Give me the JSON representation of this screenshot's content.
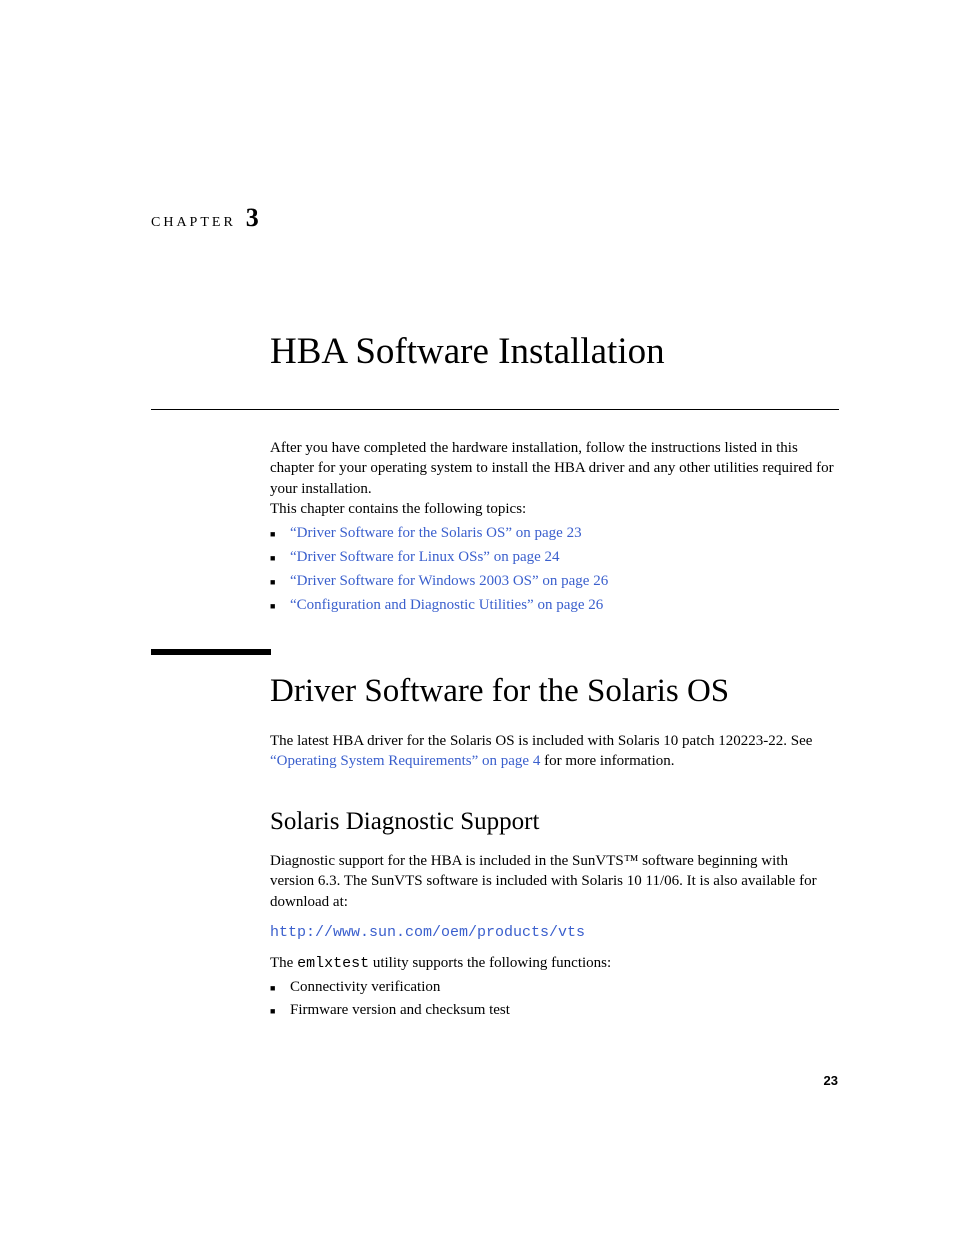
{
  "chapter": {
    "label": "CHAPTER",
    "number": "3"
  },
  "title": "HBA Software Installation",
  "intro": "After you have completed the hardware installation, follow the instructions listed in this chapter for your operating system to install the HBA driver and any other utilities required for your installation.",
  "topics_intro": "This chapter contains the following topics:",
  "toc": [
    {
      "text": "“Driver Software for the Solaris OS” on page 23"
    },
    {
      "text": "“Driver Software for Linux OSs” on page 24"
    },
    {
      "text": "“Driver Software for Windows 2003 OS” on page 26"
    },
    {
      "text": "“Configuration and Diagnostic Utilities” on page 26"
    }
  ],
  "section": {
    "title": "Driver Software for the Solaris OS",
    "para_pre": "The latest HBA driver for the Solaris OS is included with Solaris 10 patch 120223-22. See ",
    "para_link": "“Operating System Requirements” on page 4",
    "para_post": " for more information."
  },
  "subsection": {
    "title": "Solaris Diagnostic Support",
    "para": "Diagnostic support for the HBA is included in the SunVTS™ software beginning with version 6.3. The SunVTS software is included with Solaris 10 11/06. It is also available for download at:",
    "url": "http://www.sun.com/oem/products/vts",
    "util_pre": "The ",
    "util_code": "emlxtest",
    "util_post": " utility supports the following functions:",
    "funcs": [
      "Connectivity verification",
      "Firmware version and checksum test"
    ]
  },
  "page_number": "23",
  "colors": {
    "link": "#3a5fcd",
    "text": "#000000",
    "background": "#ffffff"
  },
  "fonts": {
    "body_family": "Palatino",
    "mono_family": "Courier New",
    "title_size_pt": 37,
    "section_size_pt": 33,
    "subsection_size_pt": 25,
    "body_size_pt": 15
  }
}
